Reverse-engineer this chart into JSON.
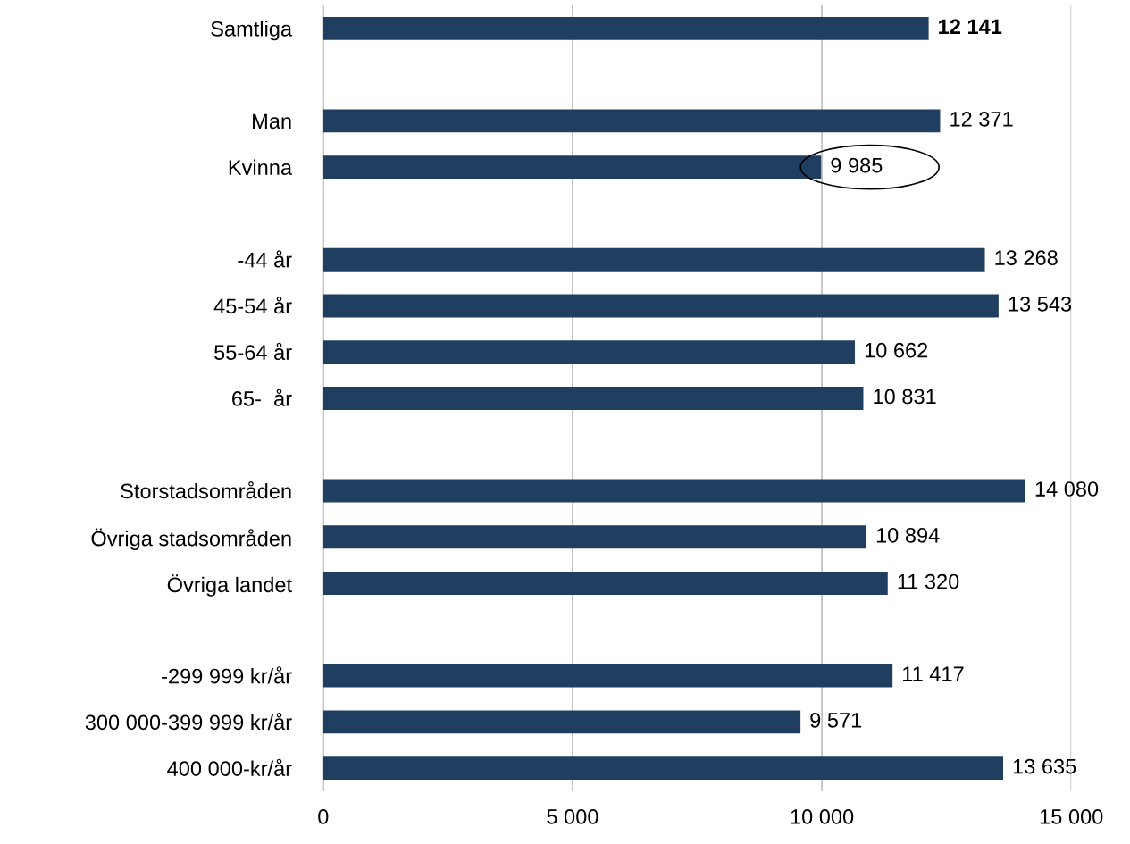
{
  "chart_data": {
    "type": "bar",
    "orientation": "horizontal",
    "categories": [
      "Samtliga",
      null,
      "Man",
      "Kvinna",
      null,
      "-44 år",
      "45-54 år",
      "55-64 år",
      "65-  år",
      null,
      "Storstadsområden",
      "Övriga stadsområden",
      "Övriga landet",
      null,
      "-299 999 kr/år",
      "300 000-399 999 kr/år",
      "400 000-kr/år"
    ],
    "values": [
      12141,
      null,
      12371,
      9985,
      null,
      13268,
      13543,
      10662,
      10831,
      null,
      14080,
      10894,
      11320,
      null,
      11417,
      9571,
      13635
    ],
    "value_labels": [
      "12 141",
      null,
      "12 371",
      "9 985",
      null,
      "13 268",
      "13 543",
      "10 662",
      "10 831",
      null,
      "14 080",
      "10 894",
      "11 320",
      null,
      "11 417",
      "9 571",
      "13 635"
    ],
    "color": "#1f3e60",
    "xlim": [
      0,
      15000
    ],
    "xticks": [
      0,
      {
        "value": 5000,
        "label": "5 000"
      },
      {
        "value": 10000,
        "label": "10 000"
      },
      {
        "value": 15000,
        "label": "15 000"
      }
    ],
    "grid": "x"
  }
}
